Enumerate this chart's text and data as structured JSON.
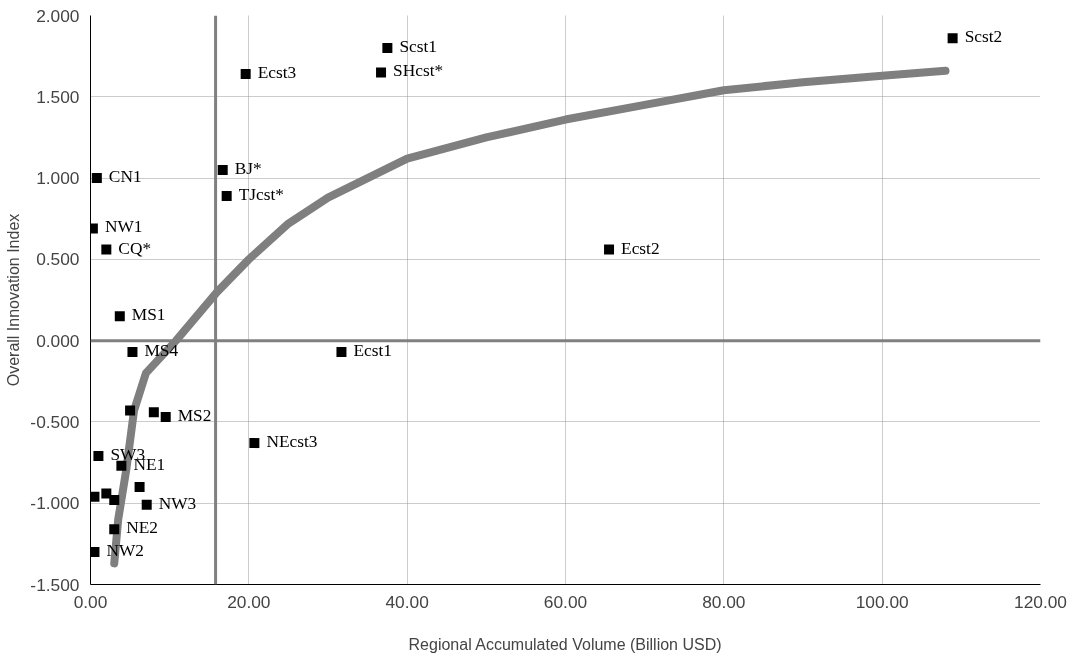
{
  "chart_data": {
    "type": "scatter",
    "xlabel": "Regional Accumulated Volume (Billion USD)",
    "ylabel": "Overall Innovation Index",
    "xlim": [
      0,
      120
    ],
    "ylim": [
      -1.5,
      2.0
    ],
    "xticks": [
      {
        "value": 0,
        "label": "0.00"
      },
      {
        "value": 20,
        "label": "20.00"
      },
      {
        "value": 40,
        "label": "40.00"
      },
      {
        "value": 60,
        "label": "60.00"
      },
      {
        "value": 80,
        "label": "80.00"
      },
      {
        "value": 100,
        "label": "100.00"
      },
      {
        "value": 120,
        "label": "120.00"
      }
    ],
    "yticks": [
      {
        "value": -1.5,
        "label": "-1.500"
      },
      {
        "value": -1.0,
        "label": "-1.000"
      },
      {
        "value": -0.5,
        "label": "-0.500"
      },
      {
        "value": 0,
        "label": "0.000"
      },
      {
        "value": 0.5,
        "label": "0.500"
      },
      {
        "value": 1.0,
        "label": "1.000"
      },
      {
        "value": 1.5,
        "label": "1.500"
      },
      {
        "value": 2.0,
        "label": "2.000"
      }
    ],
    "grid": true,
    "series": [
      {
        "type": "line",
        "color": "#7f7f7f",
        "marker": "none",
        "line_style": "solid",
        "x": [
          3.0,
          3.5,
          4.5,
          5.5,
          7,
          10.8,
          16,
          20,
          25,
          30,
          40,
          50,
          60,
          70,
          80,
          90,
          100,
          108
        ],
        "values": [
          -1.37,
          -1.1,
          -0.8,
          -0.43,
          -0.2,
          0,
          0.3,
          0.5,
          0.72,
          0.88,
          1.12,
          1.25,
          1.36,
          1.45,
          1.54,
          1.59,
          1.63,
          1.66
        ]
      },
      {
        "color": "#000000",
        "marker": "square",
        "x": [
          37.5,
          108.9,
          19.6,
          36.7,
          16.7,
          17.2,
          0.8,
          0.3,
          2.0,
          3.7,
          5.3,
          31.7,
          65.5,
          20.7,
          5.0,
          8.0,
          9.5,
          1.0,
          3.9,
          0.5,
          2.0,
          3.0,
          6.2,
          7.1,
          3.0,
          0.5
        ],
        "values": [
          1.8,
          1.86,
          1.64,
          1.65,
          1.05,
          0.89,
          1.0,
          0.69,
          0.56,
          0.15,
          -0.07,
          -0.07,
          0.56,
          -0.63,
          -0.43,
          -0.44,
          -0.47,
          -0.71,
          -0.77,
          -0.96,
          -0.94,
          -0.98,
          -0.9,
          -1.01,
          -1.16,
          -1.3
        ]
      }
    ],
    "ref_lines": [
      {
        "axis": "x",
        "value": 15.8,
        "color": "#808080"
      },
      {
        "axis": "y",
        "value": 0,
        "color": "#808080"
      }
    ],
    "annotations": [
      {
        "text": "Scst1",
        "x": 37.5,
        "y": 1.8
      },
      {
        "text": "Scst2",
        "x": 108.9,
        "y": 1.86
      },
      {
        "text": "Ecst3",
        "x": 19.6,
        "y": 1.64
      },
      {
        "text": "SHcst*",
        "x": 36.7,
        "y": 1.65
      },
      {
        "text": "BJ*",
        "x": 16.7,
        "y": 1.05
      },
      {
        "text": "TJcst*",
        "x": 17.2,
        "y": 0.89
      },
      {
        "text": "CN1",
        "x": 0.8,
        "y": 1.0
      },
      {
        "text": "NW1",
        "x": 0.3,
        "y": 0.69
      },
      {
        "text": "CQ*",
        "x": 2.0,
        "y": 0.56
      },
      {
        "text": "MS1",
        "x": 3.7,
        "y": 0.15
      },
      {
        "text": "MS4",
        "x": 5.3,
        "y": -0.07
      },
      {
        "text": "Ecst1",
        "x": 31.7,
        "y": -0.07
      },
      {
        "text": "Ecst2",
        "x": 65.5,
        "y": 0.56
      },
      {
        "text": "NEcst3",
        "x": 20.7,
        "y": -0.63
      },
      {
        "text": "MS2",
        "x": 9.5,
        "y": -0.47
      },
      {
        "text": "SW3",
        "x": 1.0,
        "y": -0.71
      },
      {
        "text": "NE1",
        "x": 3.9,
        "y": -0.77
      },
      {
        "text": "NW3",
        "x": 7.1,
        "y": -1.01
      },
      {
        "text": "NE2",
        "x": 3.0,
        "y": -1.16
      },
      {
        "text": "NW2",
        "x": 0.5,
        "y": -1.3
      }
    ]
  }
}
